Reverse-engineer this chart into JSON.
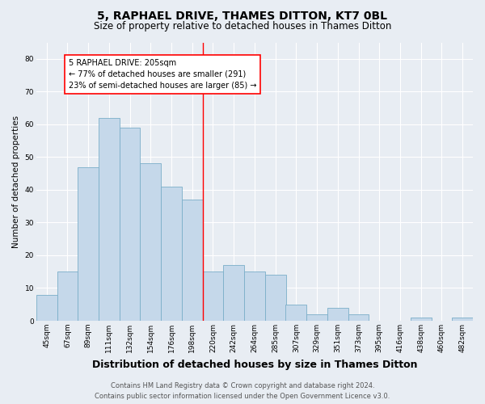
{
  "title": "5, RAPHAEL DRIVE, THAMES DITTON, KT7 0BL",
  "subtitle": "Size of property relative to detached houses in Thames Ditton",
  "xlabel": "Distribution of detached houses by size in Thames Ditton",
  "ylabel": "Number of detached properties",
  "bar_labels": [
    "45sqm",
    "67sqm",
    "89sqm",
    "111sqm",
    "132sqm",
    "154sqm",
    "176sqm",
    "198sqm",
    "220sqm",
    "242sqm",
    "264sqm",
    "285sqm",
    "307sqm",
    "329sqm",
    "351sqm",
    "373sqm",
    "395sqm",
    "416sqm",
    "438sqm",
    "460sqm",
    "482sqm"
  ],
  "bar_values": [
    8,
    15,
    47,
    62,
    59,
    48,
    41,
    37,
    15,
    17,
    15,
    14,
    5,
    2,
    4,
    2,
    0,
    0,
    1,
    0,
    1
  ],
  "bar_color": "#c5d8ea",
  "bar_edgecolor": "#7aaec8",
  "bg_color": "#e8edf3",
  "property_line_x": 7.5,
  "annotation_title": "5 RAPHAEL DRIVE: 205sqm",
  "annotation_line1": "← 77% of detached houses are smaller (291)",
  "annotation_line2": "23% of semi-detached houses are larger (85) →",
  "ylim": [
    0,
    85
  ],
  "yticks": [
    0,
    10,
    20,
    30,
    40,
    50,
    60,
    70,
    80
  ],
  "footer_line1": "Contains HM Land Registry data © Crown copyright and database right 2024.",
  "footer_line2": "Contains public sector information licensed under the Open Government Licence v3.0.",
  "title_fontsize": 10,
  "subtitle_fontsize": 8.5,
  "xlabel_fontsize": 9,
  "ylabel_fontsize": 7.5,
  "tick_fontsize": 6.5,
  "footer_fontsize": 6,
  "annotation_fontsize": 7
}
